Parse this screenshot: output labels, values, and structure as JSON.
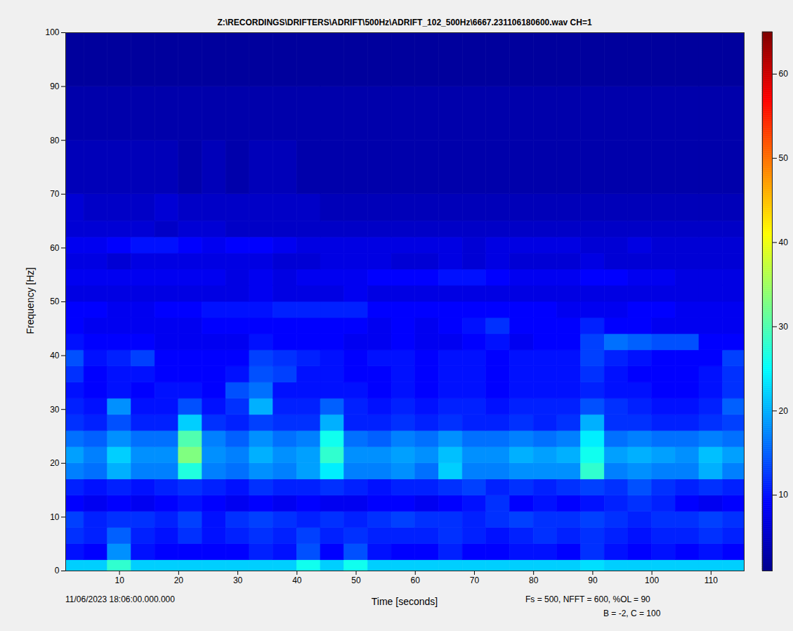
{
  "chart_data": {
    "type": "heatmap",
    "title": "Z:\\RECORDINGS\\DRIFTERS\\ADRIFT\\500Hz\\ADRIFT_102_500Hz\\6667.231106180600.wav CH=1",
    "x_label": "Time [seconds]",
    "y_label": "Frequency [Hz]",
    "annotations": [
      "11/06/2023 18:06:00.000.000",
      "Fs = 500, NFFT = 600, %OL = 90",
      "B = -2, C = 100"
    ],
    "xlim": [
      0.9,
      115.6
    ],
    "xticks": [
      10,
      20,
      30,
      40,
      50,
      60,
      70,
      80,
      90,
      100,
      110
    ],
    "ylim": [
      0,
      100
    ],
    "yticks": [
      0,
      10,
      20,
      30,
      40,
      50,
      60,
      70,
      80,
      90,
      100
    ],
    "time_bins": [
      0.9,
      4,
      8,
      12,
      16,
      20,
      24,
      28,
      32,
      36,
      40,
      44,
      48,
      52,
      56,
      60,
      64,
      68,
      72,
      76,
      80,
      84,
      88,
      92,
      96,
      100,
      104,
      108,
      112,
      115.6
    ],
    "frequency_bins": [
      0,
      2,
      5,
      8,
      11,
      14,
      17,
      20,
      23,
      26,
      29,
      32,
      35,
      38,
      41,
      44,
      47,
      50,
      53,
      56,
      59,
      62,
      65,
      70,
      80,
      90,
      100
    ],
    "values": [
      [
        22,
        22,
        28,
        22,
        22,
        22,
        22,
        22,
        22,
        22,
        26,
        22,
        26,
        22,
        22,
        22,
        22,
        22,
        22,
        22,
        22,
        22,
        23,
        22,
        22,
        22,
        22,
        22,
        22
      ],
      [
        10,
        9,
        18,
        10,
        9,
        9,
        9,
        9,
        11,
        10,
        14,
        9,
        14,
        10,
        9,
        9,
        11,
        9,
        9,
        10,
        10,
        9,
        12,
        10,
        9,
        10,
        9,
        10,
        9
      ],
      [
        12,
        11,
        15,
        11,
        10,
        12,
        10,
        11,
        12,
        11,
        13,
        11,
        12,
        11,
        11,
        11,
        12,
        11,
        10,
        11,
        12,
        11,
        12,
        11,
        10,
        11,
        11,
        12,
        11
      ],
      [
        13,
        11,
        12,
        12,
        11,
        13,
        10,
        12,
        13,
        12,
        11,
        12,
        11,
        12,
        13,
        12,
        12,
        11,
        12,
        13,
        12,
        12,
        13,
        12,
        11,
        12,
        12,
        13,
        12
      ],
      [
        9,
        8,
        9,
        8,
        9,
        10,
        9,
        8,
        9,
        8,
        9,
        8,
        8,
        9,
        9,
        8,
        9,
        10,
        12,
        9,
        10,
        9,
        10,
        11,
        12,
        11,
        9,
        8,
        9
      ],
      [
        11,
        10,
        11,
        10,
        11,
        12,
        11,
        10,
        12,
        11,
        11,
        12,
        11,
        10,
        11,
        11,
        12,
        13,
        11,
        12,
        11,
        12,
        13,
        12,
        14,
        12,
        11,
        12,
        11
      ],
      [
        17,
        16,
        20,
        17,
        17,
        27,
        17,
        16,
        18,
        17,
        19,
        24,
        17,
        17,
        18,
        16,
        22,
        17,
        17,
        18,
        18,
        18,
        28,
        17,
        18,
        17,
        17,
        20,
        17
      ],
      [
        19,
        17,
        22,
        18,
        18,
        33,
        18,
        17,
        20,
        18,
        19,
        28,
        18,
        18,
        19,
        18,
        21,
        18,
        18,
        20,
        19,
        20,
        26,
        19,
        20,
        19,
        18,
        21,
        19
      ],
      [
        16,
        15,
        18,
        16,
        16,
        30,
        17,
        15,
        18,
        16,
        17,
        26,
        16,
        15,
        17,
        16,
        18,
        16,
        16,
        17,
        16,
        17,
        24,
        16,
        17,
        16,
        16,
        17,
        16
      ],
      [
        12,
        11,
        14,
        11,
        11,
        22,
        12,
        11,
        13,
        12,
        12,
        20,
        11,
        11,
        12,
        11,
        12,
        11,
        11,
        12,
        11,
        12,
        20,
        12,
        12,
        11,
        11,
        12,
        13
      ],
      [
        11,
        10,
        18,
        10,
        10,
        14,
        10,
        12,
        20,
        11,
        11,
        15,
        11,
        10,
        11,
        10,
        11,
        11,
        10,
        11,
        11,
        11,
        14,
        12,
        11,
        10,
        10,
        11,
        15
      ],
      [
        10,
        9,
        10,
        9,
        10,
        10,
        9,
        14,
        16,
        10,
        10,
        10,
        10,
        9,
        10,
        9,
        10,
        10,
        9,
        10,
        10,
        10,
        11,
        10,
        10,
        9,
        9,
        10,
        12
      ],
      [
        12,
        9,
        10,
        10,
        9,
        9,
        9,
        10,
        14,
        13,
        10,
        10,
        9,
        9,
        10,
        9,
        10,
        10,
        9,
        10,
        10,
        10,
        12,
        10,
        9,
        9,
        9,
        10,
        12
      ],
      [
        14,
        10,
        11,
        13,
        9,
        9,
        9,
        9,
        13,
        12,
        11,
        10,
        9,
        10,
        10,
        9,
        10,
        10,
        9,
        10,
        10,
        10,
        13,
        11,
        10,
        9,
        9,
        9,
        13
      ],
      [
        10,
        9,
        9,
        9,
        8,
        8,
        8,
        8,
        10,
        9,
        9,
        9,
        8,
        8,
        9,
        8,
        8,
        9,
        10,
        8,
        9,
        9,
        13,
        16,
        15,
        14,
        14,
        9,
        9
      ],
      [
        9,
        8,
        8,
        8,
        8,
        8,
        9,
        9,
        9,
        9,
        9,
        9,
        9,
        8,
        9,
        8,
        9,
        10,
        12,
        9,
        9,
        9,
        11,
        9,
        9,
        8,
        8,
        8,
        8
      ],
      [
        9,
        9,
        8,
        8,
        9,
        9,
        10,
        10,
        10,
        11,
        11,
        11,
        11,
        9,
        9,
        9,
        9,
        9,
        9,
        9,
        9,
        8,
        8,
        8,
        9,
        9,
        8,
        8,
        8
      ],
      [
        7,
        7,
        7,
        7,
        7,
        7,
        7,
        7,
        8,
        7,
        7,
        7,
        8,
        7,
        7,
        7,
        7,
        7,
        7,
        7,
        7,
        7,
        7,
        7,
        7,
        7,
        7,
        7,
        7
      ],
      [
        8,
        8,
        8,
        8,
        8,
        8,
        8,
        7,
        8,
        7,
        8,
        8,
        8,
        9,
        9,
        9,
        10,
        10,
        9,
        8,
        8,
        8,
        9,
        9,
        8,
        8,
        7,
        7,
        7
      ],
      [
        7,
        7,
        6,
        7,
        7,
        7,
        7,
        7,
        7,
        6,
        6,
        7,
        7,
        7,
        6,
        6,
        7,
        6,
        7,
        6,
        6,
        6,
        7,
        6,
        6,
        6,
        6,
        6,
        6
      ],
      [
        8,
        8,
        9,
        10,
        10,
        9,
        8,
        9,
        9,
        8,
        7,
        7,
        7,
        7,
        7,
        7,
        7,
        6,
        7,
        7,
        7,
        7,
        6,
        6,
        7,
        6,
        6,
        6,
        6
      ],
      [
        6,
        6,
        6,
        6,
        5,
        6,
        6,
        5,
        5,
        5,
        5,
        5,
        5,
        5,
        5,
        5,
        5,
        5,
        5,
        5,
        5,
        5,
        5,
        5,
        5,
        5,
        5,
        5,
        5
      ],
      [
        6,
        5,
        5,
        5,
        6,
        5,
        5,
        5,
        5,
        5,
        5,
        4,
        4,
        4,
        4,
        4,
        4,
        4,
        4,
        4,
        4,
        4,
        4,
        4,
        4,
        4,
        4,
        4,
        4
      ],
      [
        4,
        4,
        4,
        4,
        4,
        3,
        4,
        3,
        4,
        4,
        3,
        3,
        3,
        3,
        3,
        3,
        3,
        3,
        3,
        3,
        3,
        3,
        3,
        3,
        3,
        3,
        3,
        3,
        3
      ],
      [
        3,
        3,
        3,
        3,
        3,
        3,
        3,
        3,
        3,
        3,
        3,
        3,
        3,
        3,
        3,
        3,
        3,
        3,
        3,
        3,
        3,
        3,
        3,
        3,
        3,
        3,
        3,
        3,
        3
      ],
      [
        2,
        2,
        2,
        2,
        2,
        2,
        2,
        2,
        2,
        2,
        2,
        2,
        2,
        2,
        2,
        2,
        2,
        2,
        2,
        2,
        2,
        2,
        2,
        2,
        2,
        2,
        2,
        2,
        2
      ]
    ],
    "colorbar": {
      "range": [
        1,
        65
      ],
      "ticks": [
        10,
        20,
        30,
        40,
        50,
        60
      ]
    }
  }
}
